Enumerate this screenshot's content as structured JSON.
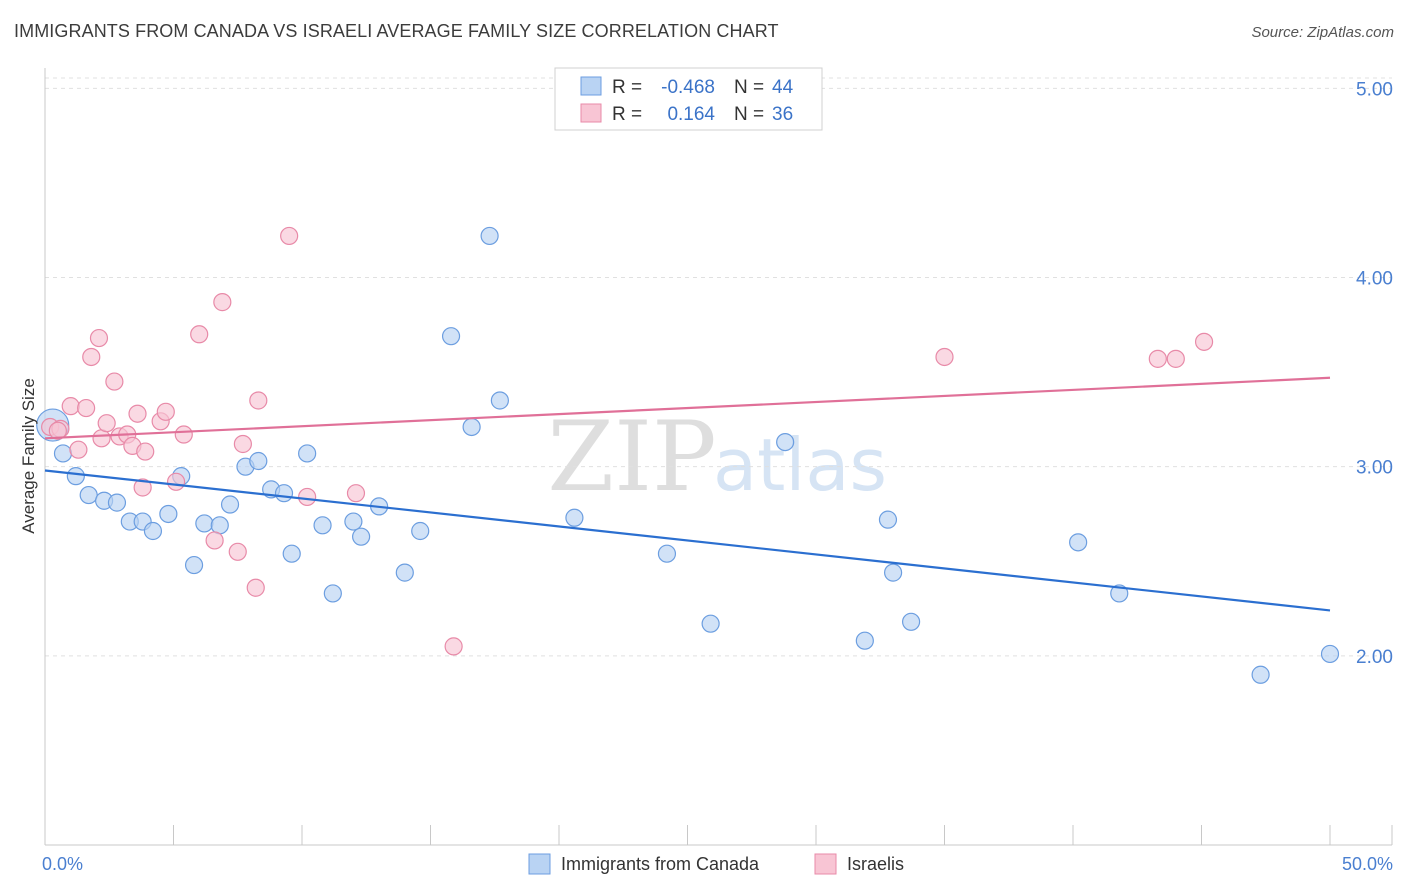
{
  "title": "IMMIGRANTS FROM CANADA VS ISRAELI AVERAGE FAMILY SIZE CORRELATION CHART",
  "source": "Source: ZipAtlas.com",
  "watermark": {
    "zip": "ZIP",
    "atlas": "atlas"
  },
  "colors": {
    "blue_fill": "#b9d3f3",
    "blue_stroke": "#6c9ee0",
    "blue_line": "#2b6fd0",
    "pink_fill": "#f8c5d4",
    "pink_stroke": "#e88aa8",
    "pink_line": "#e07098",
    "grid": "#e0e0e0",
    "axis_text": "#4a7fd0"
  },
  "legend": {
    "rows": [
      {
        "r_label": "R =",
        "r_value": "-0.468",
        "n_label": "N =",
        "n_value": "44"
      },
      {
        "r_label": "R =",
        "r_value": "0.164",
        "n_label": "N =",
        "n_value": "36"
      }
    ]
  },
  "bottom_legend": [
    "Immigrants from Canada",
    "Israelis"
  ],
  "chart_data": {
    "type": "scatter",
    "title": "IMMIGRANTS FROM CANADA VS ISRAELI AVERAGE FAMILY SIZE CORRELATION CHART",
    "xlabel": "",
    "ylabel": "Average Family Size",
    "xlim": [
      0,
      50
    ],
    "ylim": [
      1.0,
      5.15
    ],
    "x_tick_labels": [
      "0.0%",
      "50.0%"
    ],
    "y_ticks": [
      2.0,
      3.0,
      4.0,
      5.0
    ],
    "y_tick_labels": [
      "2.00",
      "3.00",
      "4.00",
      "5.00"
    ],
    "grid": true,
    "series": [
      {
        "name": "Immigrants from Canada",
        "color": "blue",
        "trend": {
          "x0": 0,
          "y0": 2.98,
          "x1": 50,
          "y1": 2.24
        },
        "points": [
          [
            0.3,
            3.22
          ],
          [
            0.7,
            3.07
          ],
          [
            1.2,
            2.95
          ],
          [
            1.7,
            2.85
          ],
          [
            2.3,
            2.82
          ],
          [
            2.8,
            2.81
          ],
          [
            3.3,
            2.71
          ],
          [
            3.8,
            2.71
          ],
          [
            4.2,
            2.66
          ],
          [
            4.8,
            2.75
          ],
          [
            5.3,
            2.95
          ],
          [
            5.8,
            2.48
          ],
          [
            6.2,
            2.7
          ],
          [
            6.8,
            2.69
          ],
          [
            7.2,
            2.8
          ],
          [
            7.8,
            3.0
          ],
          [
            8.3,
            3.03
          ],
          [
            8.8,
            2.88
          ],
          [
            9.3,
            2.86
          ],
          [
            9.6,
            2.54
          ],
          [
            10.2,
            3.07
          ],
          [
            10.8,
            2.69
          ],
          [
            11.2,
            2.33
          ],
          [
            12.0,
            2.71
          ],
          [
            12.3,
            2.63
          ],
          [
            13.0,
            2.79
          ],
          [
            14.0,
            2.44
          ],
          [
            14.6,
            2.66
          ],
          [
            15.8,
            3.69
          ],
          [
            16.6,
            3.21
          ],
          [
            17.3,
            4.22
          ],
          [
            17.7,
            3.35
          ],
          [
            20.6,
            2.73
          ],
          [
            24.2,
            2.54
          ],
          [
            25.9,
            2.17
          ],
          [
            28.8,
            3.13
          ],
          [
            31.9,
            2.08
          ],
          [
            32.8,
            2.72
          ],
          [
            33.0,
            2.44
          ],
          [
            33.7,
            2.18
          ],
          [
            40.2,
            2.6
          ],
          [
            41.8,
            2.33
          ],
          [
            47.3,
            1.9
          ],
          [
            50.0,
            2.01
          ]
        ]
      },
      {
        "name": "Israelis",
        "color": "pink",
        "trend": {
          "x0": 0,
          "y0": 3.15,
          "x1": 50,
          "y1": 3.47
        },
        "points": [
          [
            0.2,
            3.21
          ],
          [
            0.6,
            3.2
          ],
          [
            1.0,
            3.32
          ],
          [
            1.3,
            3.09
          ],
          [
            1.6,
            3.31
          ],
          [
            1.8,
            3.58
          ],
          [
            2.1,
            3.68
          ],
          [
            2.2,
            3.15
          ],
          [
            2.4,
            3.23
          ],
          [
            2.7,
            3.45
          ],
          [
            2.9,
            3.16
          ],
          [
            3.2,
            3.17
          ],
          [
            3.4,
            3.11
          ],
          [
            3.6,
            3.28
          ],
          [
            3.8,
            2.89
          ],
          [
            3.9,
            3.08
          ],
          [
            4.5,
            3.24
          ],
          [
            4.7,
            3.29
          ],
          [
            5.1,
            2.92
          ],
          [
            5.4,
            3.17
          ],
          [
            6.0,
            3.7
          ],
          [
            6.6,
            2.61
          ],
          [
            6.9,
            3.87
          ],
          [
            7.5,
            2.55
          ],
          [
            7.7,
            3.12
          ],
          [
            8.2,
            2.36
          ],
          [
            8.3,
            3.35
          ],
          [
            9.5,
            4.22
          ],
          [
            10.2,
            2.84
          ],
          [
            12.1,
            2.86
          ],
          [
            15.9,
            2.05
          ],
          [
            35.0,
            3.58
          ],
          [
            43.3,
            3.57
          ],
          [
            45.1,
            3.66
          ],
          [
            44.0,
            3.57
          ],
          [
            0.5,
            3.19
          ]
        ]
      }
    ]
  }
}
